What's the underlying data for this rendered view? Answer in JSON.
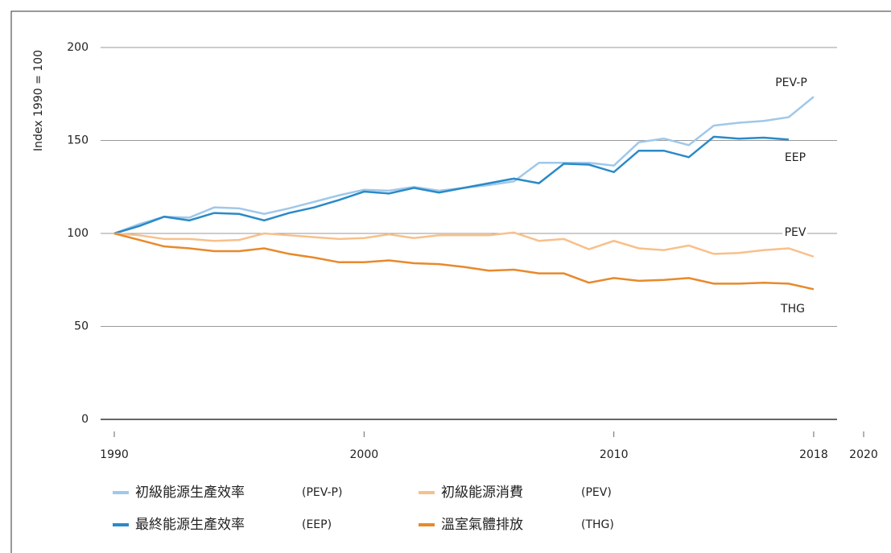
{
  "chart_data": {
    "type": "line",
    "y_label": "Index 1990 = 100",
    "x": [
      1990,
      1991,
      1992,
      1993,
      1994,
      1995,
      1996,
      1997,
      1998,
      1999,
      2000,
      2001,
      2002,
      2003,
      2004,
      2005,
      2006,
      2007,
      2008,
      2009,
      2010,
      2011,
      2012,
      2013,
      2014,
      2015,
      2016,
      2017,
      2018
    ],
    "xlim": [
      1990,
      2020
    ],
    "xticks": [
      1990,
      2000,
      2010,
      2018,
      2020
    ],
    "ylim": [
      0,
      200
    ],
    "yticks": [
      0,
      50,
      100,
      150,
      200
    ],
    "grid": true,
    "series": [
      {
        "name": "初級能源生產效率",
        "code": "(PEV-P)",
        "end_label": "PEV-P",
        "color": "#9fc8ea",
        "values": [
          100,
          105,
          109,
          108.5,
          114,
          113.5,
          110.5,
          113.5,
          117,
          120.5,
          123.5,
          123,
          125,
          123,
          124.5,
          126,
          128,
          138,
          138,
          138,
          136.5,
          149,
          151,
          147.5,
          158,
          159.5,
          160.5,
          162.5,
          173.5
        ]
      },
      {
        "name": "最終能源生產效率",
        "code": "(EEP)",
        "end_label": "EEP",
        "color": "#2a8ac8",
        "values": [
          100,
          104,
          109,
          107,
          111,
          110.5,
          107,
          111,
          114,
          118,
          122.5,
          121.5,
          124.5,
          122,
          124.5,
          127,
          129.5,
          127,
          137.5,
          137,
          133,
          144.5,
          144.5,
          141,
          152,
          151,
          151.5,
          150.5,
          null
        ]
      },
      {
        "name": "初級能源消費",
        "code": "(PEV)",
        "end_label": "PEV",
        "color": "#f8c08a",
        "values": [
          100,
          99,
          97,
          97,
          96,
          96.5,
          100,
          99,
          98,
          97,
          97.5,
          99.5,
          97.5,
          99,
          99,
          99,
          100.5,
          96,
          97,
          91.5,
          96,
          92,
          91,
          93.5,
          89,
          89.5,
          91,
          92,
          87.5
        ]
      },
      {
        "name": "溫室氣體排放",
        "code": "(THG)",
        "end_label": "THG",
        "color": "#e8892b",
        "values": [
          100,
          96.5,
          93,
          92,
          90.5,
          90.5,
          92,
          89,
          87,
          84.5,
          84.5,
          85.5,
          84,
          83.5,
          82,
          80,
          80.5,
          78.5,
          78.5,
          73.5,
          76,
          74.5,
          75,
          76,
          73,
          73,
          73.5,
          73,
          70
        ]
      }
    ]
  }
}
